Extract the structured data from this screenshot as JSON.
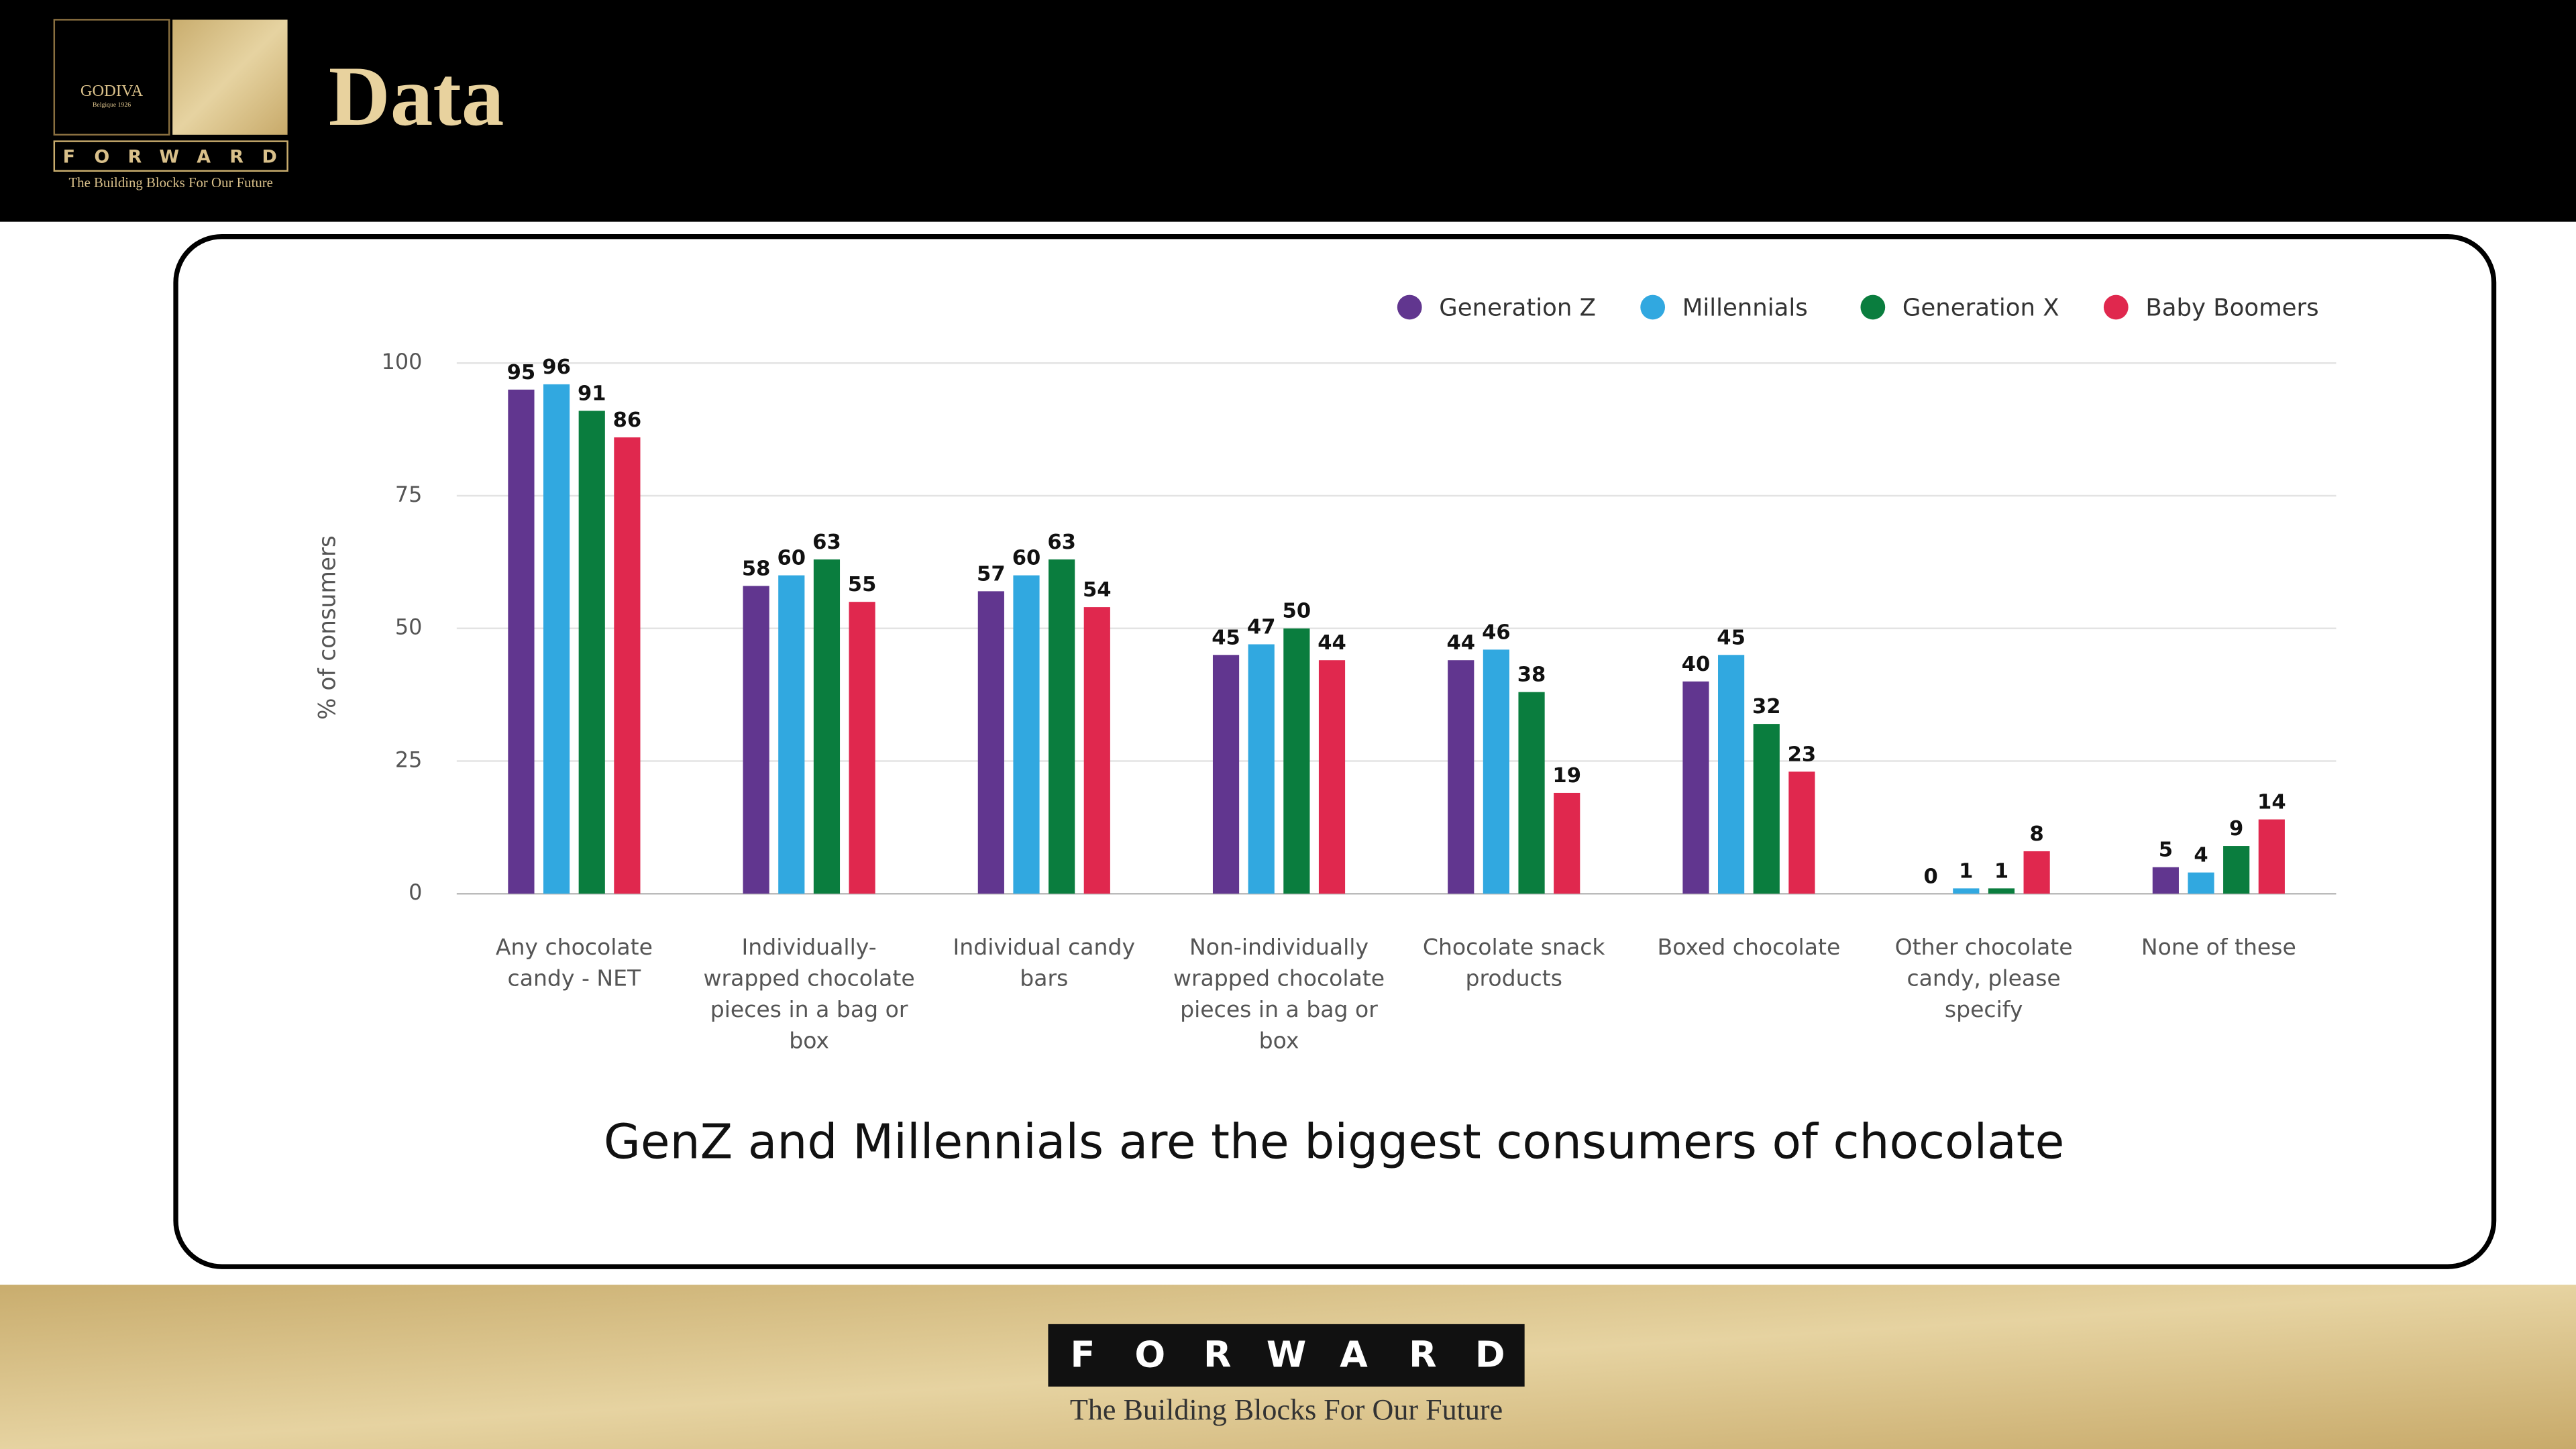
{
  "header": {
    "brand": "GODIVA",
    "brand_sub": "Belgique 1926",
    "logo_word": "FORWARD",
    "logo_tagline": "The Building Blocks For Our Future",
    "title": "Data"
  },
  "chart_data": {
    "type": "bar",
    "ylabel": "% of consumers",
    "categories": [
      "Any chocolate candy - NET",
      "Individually-wrapped chocolate pieces in a bag or box",
      "Individual candy bars",
      "Non-individually wrapped chocolate pieces in a bag or box",
      "Chocolate snack products",
      "Boxed chocolate",
      "Other chocolate candy, please specify",
      "None of these"
    ],
    "series": [
      {
        "name": "Generation Z",
        "color": "#61368f",
        "values": [
          95,
          58,
          57,
          45,
          44,
          40,
          0,
          5
        ]
      },
      {
        "name": "Millennials",
        "color": "#31a8e0",
        "values": [
          96,
          60,
          60,
          47,
          46,
          45,
          1,
          4
        ]
      },
      {
        "name": "Generation X",
        "color": "#0a7d3e",
        "values": [
          91,
          63,
          63,
          50,
          38,
          32,
          1,
          9
        ]
      },
      {
        "name": "Baby Boomers",
        "color": "#e0284e",
        "values": [
          86,
          55,
          54,
          44,
          19,
          23,
          8,
          14
        ]
      }
    ],
    "ylim": [
      0,
      100
    ],
    "yticks": [
      0,
      25,
      50,
      75,
      100
    ],
    "grid": true,
    "legend": "top-right",
    "caption": "GenZ and Millennials are the biggest consumers of chocolate"
  },
  "footer": {
    "word": "FORWARD",
    "tagline": "The Building Blocks For Our Future"
  }
}
